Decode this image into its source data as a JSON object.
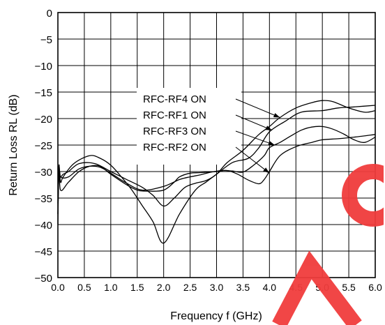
{
  "chart_data": {
    "type": "line",
    "title": "",
    "xlabel": "Frequency f (GHz)",
    "ylabel": "Return Loss RL (dB)",
    "xlim": [
      0.0,
      6.0
    ],
    "ylim": [
      -50,
      0
    ],
    "x_ticks": [
      "0.0",
      "0.5",
      "1.0",
      "1.5",
      "2.0",
      "2.5",
      "3.0",
      "3.5",
      "4.0",
      "4.5",
      "5.0",
      "5.5",
      "6.0"
    ],
    "y_ticks": [
      "0",
      "−5",
      "−10",
      "−15",
      "−20",
      "−25",
      "−30",
      "−35",
      "−40",
      "−45",
      "−50"
    ],
    "grid": true,
    "legend_box_fill": "#ffffff",
    "watermark_color": "#f03c3c",
    "series": [
      {
        "name": "RFC-RF4 ON",
        "x": [
          0.0,
          0.02,
          0.05,
          0.1,
          0.2,
          0.4,
          0.7,
          1.0,
          1.3,
          1.6,
          1.8,
          2.0,
          2.2,
          2.4,
          2.6,
          2.8,
          3.0,
          3.2,
          3.5,
          3.8,
          4.0,
          4.2,
          4.5,
          4.8,
          5.0,
          5.2,
          5.5,
          5.8,
          6.0
        ],
        "y": [
          -38,
          -30,
          -31,
          -30.5,
          -30,
          -28.5,
          -28.5,
          -30,
          -31.5,
          -33,
          -34.5,
          -36.5,
          -35,
          -33,
          -32.2,
          -31.7,
          -30.5,
          -28.3,
          -26,
          -23,
          -21.5,
          -19.8,
          -18,
          -17,
          -16.6,
          -16.8,
          -18,
          -18.8,
          -18.5
        ]
      },
      {
        "name": "RFC-RF1 ON",
        "x": [
          0.0,
          0.02,
          0.05,
          0.1,
          0.3,
          0.6,
          0.8,
          1.0,
          1.2,
          1.4,
          1.6,
          1.8,
          2.0,
          2.3,
          2.6,
          2.8,
          3.0,
          3.3,
          3.6,
          3.8,
          4.0,
          4.3,
          4.6,
          5.0,
          5.3,
          5.6,
          6.0
        ],
        "y": [
          -36,
          -29,
          -32,
          -31,
          -28.5,
          -27,
          -27.5,
          -28.8,
          -31,
          -33.5,
          -36.5,
          -39.5,
          -43.5,
          -38,
          -33.5,
          -32,
          -30.5,
          -28.3,
          -27.5,
          -25.5,
          -22.5,
          -20.5,
          -18.8,
          -18.5,
          -18,
          -17.8,
          -17.5
        ]
      },
      {
        "name": "RFC-RF3 ON",
        "x": [
          0.0,
          0.02,
          0.05,
          0.2,
          0.4,
          0.6,
          0.8,
          1.0,
          1.3,
          1.6,
          2.0,
          2.3,
          2.5,
          2.7,
          2.9,
          3.1,
          3.3,
          3.5,
          3.7,
          3.9,
          4.0,
          4.2,
          4.4,
          4.6,
          4.8,
          5.0,
          5.2,
          5.4,
          5.6,
          5.8,
          6.0
        ],
        "y": [
          -38,
          -29,
          -31,
          -31,
          -29.5,
          -29,
          -29.2,
          -30.3,
          -32.2,
          -33.5,
          -32.8,
          -31.5,
          -31,
          -30.6,
          -30.1,
          -29.8,
          -29.9,
          -30.1,
          -28.8,
          -27,
          -25.5,
          -24.5,
          -23.3,
          -22.2,
          -21.6,
          -21.5,
          -22,
          -22.9,
          -24,
          -24.5,
          -23.5
        ]
      },
      {
        "name": "RFC-RF2 ON",
        "x": [
          0.0,
          0.02,
          0.05,
          0.2,
          0.4,
          0.6,
          0.8,
          1.0,
          1.3,
          1.5,
          1.7,
          2.0,
          2.2,
          2.3,
          2.5,
          2.7,
          3.0,
          3.2,
          3.4,
          3.6,
          3.8,
          3.9,
          4.0,
          4.2,
          4.5,
          4.8,
          5.0,
          5.3,
          5.6,
          6.0
        ],
        "y": [
          -40,
          -29,
          -33.5,
          -32,
          -30,
          -29,
          -29,
          -30.5,
          -32.5,
          -33.5,
          -33.7,
          -33.5,
          -32,
          -31,
          -30.3,
          -30.2,
          -30,
          -29.8,
          -30.5,
          -31.6,
          -32.3,
          -31.5,
          -30,
          -27,
          -25.3,
          -24.5,
          -24,
          -23.8,
          -23.5,
          -23
        ]
      }
    ],
    "annotations": [
      {
        "text": "RFC-RF4 ON",
        "target_x": 4.2,
        "target_y": -19.8
      },
      {
        "text": "RFC-RF1 ON",
        "target_x": 4.05,
        "target_y": -22.2
      },
      {
        "text": "RFC-RF3 ON",
        "target_x": 4.1,
        "target_y": -25.0
      },
      {
        "text": "RFC-RF2 ON",
        "target_x": 4.0,
        "target_y": -30.3
      }
    ]
  }
}
